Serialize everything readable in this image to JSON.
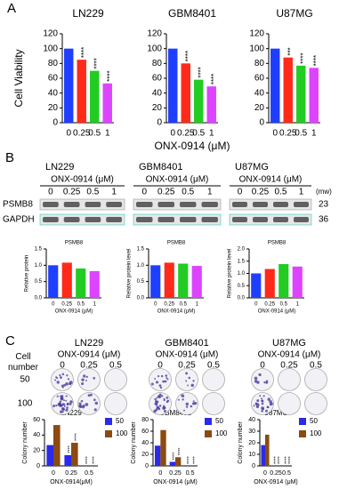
{
  "panels": [
    "A",
    "B",
    "C"
  ],
  "chart_data": [
    {
      "type": "bar",
      "title": "LN229",
      "title_color": "#1f3fff",
      "y_label": "Cell Viability",
      "categories": [
        "0",
        "0.25",
        "0.5",
        "1"
      ],
      "values": [
        100,
        85,
        70,
        53
      ],
      "colors": [
        "#1f3fff",
        "#ff2a1a",
        "#22cc22",
        "#dd44ff"
      ],
      "significance": [
        null,
        "****",
        "****",
        "****"
      ],
      "ylim": [
        0,
        120
      ],
      "yticks": [
        0,
        20,
        40,
        60,
        80,
        100,
        120
      ]
    },
    {
      "type": "bar",
      "title": "GBM8401",
      "title_color": "#1f3fff",
      "x_label": "ONX-0914 (μM)",
      "categories": [
        "0",
        "0.25",
        "0.5",
        "1"
      ],
      "values": [
        100,
        80,
        58,
        49
      ],
      "colors": [
        "#1f3fff",
        "#ff2a1a",
        "#22cc22",
        "#dd44ff"
      ],
      "significance": [
        null,
        "****",
        "****",
        "****"
      ],
      "ylim": [
        0,
        120
      ],
      "yticks": [
        0,
        20,
        40,
        60,
        80,
        100,
        120
      ]
    },
    {
      "type": "bar",
      "title": "U87MG",
      "title_color": "#1f3fff",
      "categories": [
        "0",
        "0.25",
        "0.5",
        "1"
      ],
      "values": [
        100,
        88,
        77,
        74
      ],
      "colors": [
        "#1f3fff",
        "#ff2a1a",
        "#22cc22",
        "#dd44ff"
      ],
      "significance": [
        null,
        "***",
        "****",
        "****"
      ],
      "ylim": [
        0,
        120
      ],
      "yticks": [
        0,
        20,
        40,
        60,
        80,
        100,
        120
      ]
    },
    {
      "type": "bar",
      "title": "PSMB8",
      "title_color": "#ff2a1a",
      "y_label": "Relative protein",
      "x_label": "ONX-0914 (μM)",
      "categories": [
        "0",
        "0.25",
        "0.5",
        "1"
      ],
      "values": [
        1.0,
        1.08,
        0.9,
        0.82
      ],
      "colors": [
        "#1f3fff",
        "#ff2a1a",
        "#22cc22",
        "#dd44ff"
      ],
      "ylim": [
        0,
        1.5
      ],
      "yticks": [
        {
          "value": 0,
          "label": "0.0"
        },
        0.5,
        {
          "value": 1,
          "label": "1.0"
        },
        1.5
      ]
    },
    {
      "type": "bar",
      "title": "PSMB8",
      "title_color": "#000000",
      "y_label": "Relative protein level",
      "x_label": "ONX-0914 (μM)",
      "categories": [
        "0",
        "0.25",
        "0.5",
        "1"
      ],
      "values": [
        1.0,
        1.08,
        1.05,
        0.98
      ],
      "colors": [
        "#1f3fff",
        "#ff2a1a",
        "#22cc22",
        "#dd44ff"
      ],
      "ylim": [
        0,
        1.5
      ],
      "yticks": [
        {
          "value": 0,
          "label": "0.0"
        },
        0.5,
        {
          "value": 1,
          "label": "1.0"
        },
        1.5
      ]
    },
    {
      "type": "bar",
      "title": "PSMB8",
      "title_color": "#000000",
      "y_label": "Relative protein level",
      "x_label": "ONX-0914 (μM)",
      "categories": [
        "0",
        "0.25",
        "0.5",
        "1"
      ],
      "values": [
        1.0,
        1.18,
        1.38,
        1.28
      ],
      "colors": [
        "#1f3fff",
        "#ff2a1a",
        "#22cc22",
        "#dd44ff"
      ],
      "ylim": [
        0,
        2
      ],
      "yticks": [
        {
          "value": 0,
          "label": "0.0"
        },
        0.5,
        {
          "value": 1,
          "label": "1.0"
        },
        1.5,
        {
          "value": 2,
          "label": "2.0"
        }
      ]
    },
    {
      "type": "grouped-bar",
      "title": "LN229",
      "title_color": "#000000",
      "y_label": "Colony number",
      "x_label": "ONX-0914(μM)",
      "categories": [
        "0",
        "0.25",
        "0.5"
      ],
      "series": [
        {
          "name": "50",
          "color": "#2a2ae8",
          "values": [
            27,
            14,
            0
          ],
          "significance": [
            null,
            "****",
            "****"
          ]
        },
        {
          "name": "100",
          "color": "#8b4a10",
          "values": [
            53,
            30,
            0
          ],
          "significance": [
            null,
            "****",
            "****"
          ]
        }
      ],
      "ylim": [
        0,
        60
      ],
      "yticks": [
        0,
        20,
        40,
        60
      ],
      "legend": "right"
    },
    {
      "type": "grouped-bar",
      "title": "GBM8401",
      "title_color": "#000000",
      "y_label": "Colony number",
      "x_label": "ONX-0914 (μM)",
      "categories": [
        "0",
        "0.25",
        "0.5"
      ],
      "series": [
        {
          "name": "50",
          "color": "#2a2ae8",
          "values": [
            35,
            7,
            0
          ],
          "significance": [
            null,
            "****",
            "****"
          ]
        },
        {
          "name": "100",
          "color": "#8b4a10",
          "values": [
            62,
            15,
            0
          ],
          "significance": [
            null,
            "****",
            "****"
          ]
        }
      ],
      "ylim": [
        0,
        80
      ],
      "yticks": [
        0,
        20,
        40,
        60,
        80
      ],
      "legend": "right"
    },
    {
      "type": "grouped-bar",
      "title": "U87MG",
      "title_color": "#000000",
      "y_label": "Colony number",
      "x_label": "ONX-0914 (μM)",
      "categories": [
        "0",
        "0.25",
        "0.5"
      ],
      "series": [
        {
          "name": "50",
          "color": "#2a2ae8",
          "values": [
            18,
            0,
            0
          ],
          "significance": [
            null,
            "****",
            "****"
          ]
        },
        {
          "name": "100",
          "color": "#8b4a10",
          "values": [
            27,
            0,
            0
          ],
          "significance": [
            null,
            "****",
            "****"
          ]
        }
      ],
      "ylim": [
        0,
        40
      ],
      "yticks": [
        0,
        10,
        20,
        30,
        40
      ],
      "legend": "right"
    }
  ],
  "blot": {
    "cell_lines": [
      "LN229",
      "GBM8401",
      "U87MG"
    ],
    "treatment_label": "ONX-0914  (μM)",
    "doses": [
      "0",
      "0.25",
      "0.5",
      "1"
    ],
    "mw_label": "(mw)",
    "rows": [
      {
        "name": "PSMB8",
        "mw": "23"
      },
      {
        "name": "GAPDH",
        "mw": "36"
      }
    ]
  },
  "colony": {
    "cell_lines": [
      "LN229",
      "GBM8401",
      "U87MG"
    ],
    "treatment_label": "ONX-0914  (μM)",
    "doses": [
      "0",
      "0.25",
      "0.5"
    ],
    "row_header": "Cell number",
    "rows": [
      "50",
      "100"
    ]
  }
}
